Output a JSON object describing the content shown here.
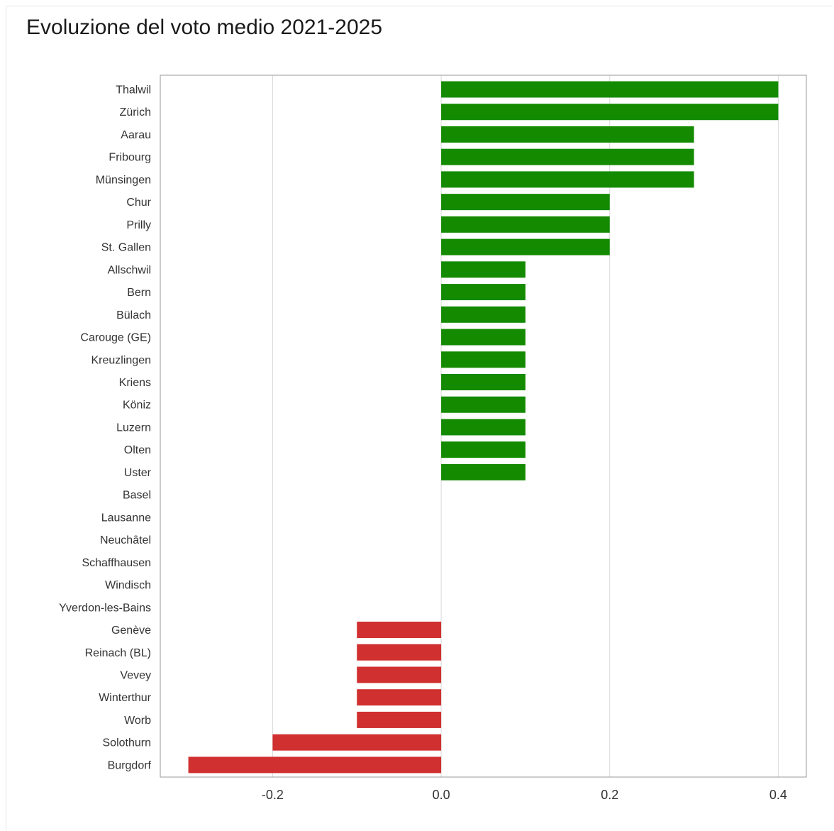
{
  "chart_data": {
    "type": "bar",
    "orientation": "horizontal",
    "title": "Evoluzione del voto medio 2021-2025",
    "xlabel": "",
    "ylabel": "",
    "xlim": [
      -0.3333,
      0.4333
    ],
    "xticks": [
      -0.2,
      0.0,
      0.2,
      0.4
    ],
    "xtick_labels": [
      "-0.2",
      "0.0",
      "0.2",
      "0.4"
    ],
    "grid": "vertical",
    "positive_color": "#138a00",
    "negative_color": "#d03030",
    "categories": [
      "Thalwil",
      "Zürich",
      "Aarau",
      "Fribourg",
      "Münsingen",
      "Chur",
      "Prilly",
      "St. Gallen",
      "Allschwil",
      "Bern",
      "Bülach",
      "Carouge (GE)",
      "Kreuzlingen",
      "Kriens",
      "Köniz",
      "Luzern",
      "Olten",
      "Uster",
      "Basel",
      "Lausanne",
      "Neuchâtel",
      "Schaffhausen",
      "Windisch",
      "Yverdon-les-Bains",
      "Genève",
      "Reinach (BL)",
      "Vevey",
      "Winterthur",
      "Worb",
      "Solothurn",
      "Burgdorf"
    ],
    "values": [
      0.4,
      0.4,
      0.3,
      0.3,
      0.3,
      0.2,
      0.2,
      0.2,
      0.1,
      0.1,
      0.1,
      0.1,
      0.1,
      0.1,
      0.1,
      0.1,
      0.1,
      0.1,
      0.0,
      0.0,
      0.0,
      0.0,
      0.0,
      0.0,
      -0.1,
      -0.1,
      -0.1,
      -0.1,
      -0.1,
      -0.2,
      -0.3
    ]
  }
}
